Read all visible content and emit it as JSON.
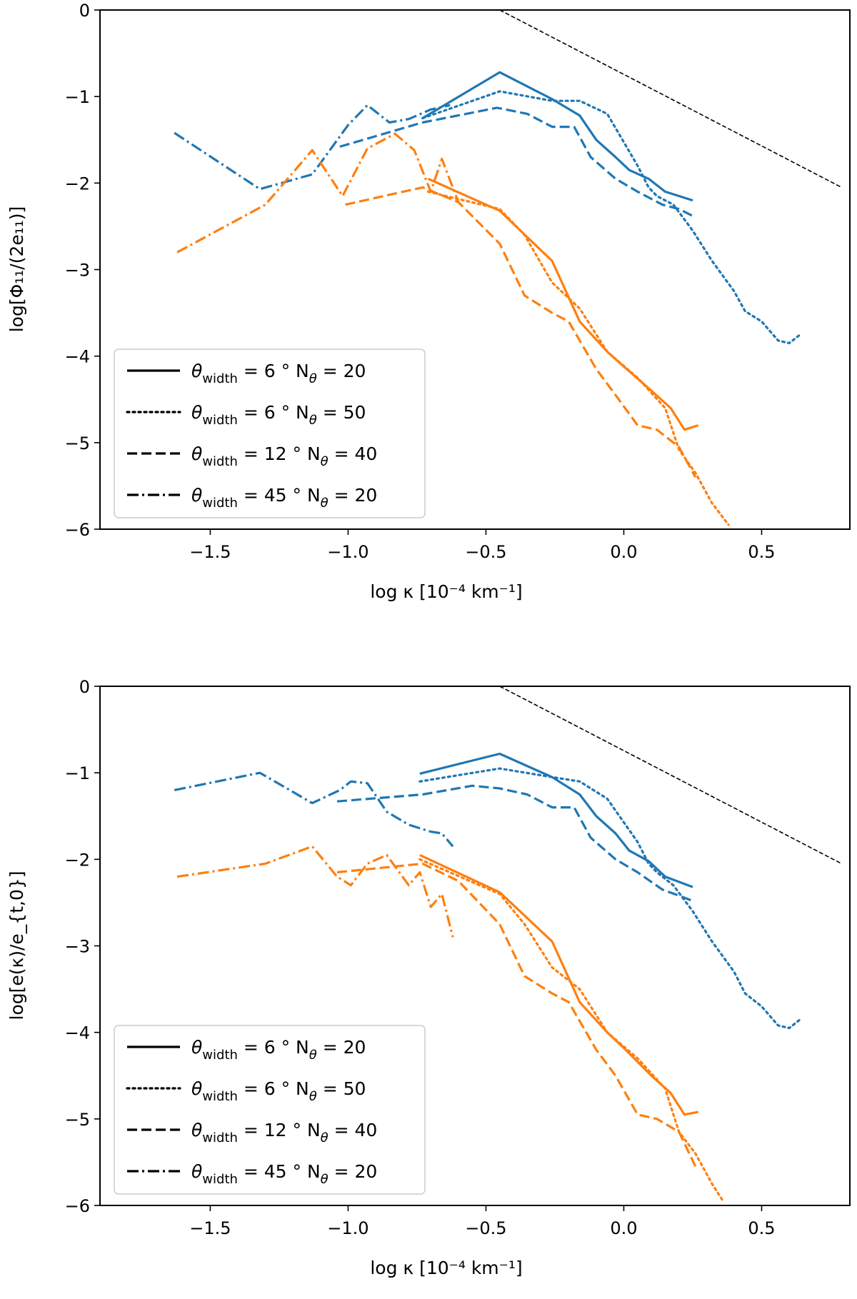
{
  "colors": {
    "blue": "#1f77b4",
    "orange": "#ff7f0e",
    "reference": "#000000"
  },
  "chart_data": [
    {
      "type": "line",
      "xlabel": "log κ [10⁻⁴ km⁻¹]",
      "ylabel": "log[Φ₁₁/(2e₁₁)]",
      "xlim": [
        -1.9,
        0.82
      ],
      "ylim": [
        -6,
        0
      ],
      "x_ticks": [
        "−1.5",
        "−1.0",
        "−0.5",
        "0.0",
        "0.5"
      ],
      "y_ticks": [
        "0",
        "−1",
        "−2",
        "−3",
        "−4",
        "−5",
        "−6"
      ],
      "legend_position": "lower-left",
      "legend": [
        {
          "style": "solid",
          "label_prefix": "θ",
          "label_sub": "width",
          "label_rest": " = 6 ° N",
          "label_sub2": "θ",
          "label_end": " = 20"
        },
        {
          "style": "dotted",
          "label_prefix": "θ",
          "label_sub": "width",
          "label_rest": " = 6 ° N",
          "label_sub2": "θ",
          "label_end": " = 50"
        },
        {
          "style": "dashed",
          "label_prefix": "θ",
          "label_sub": "width",
          "label_rest": " = 12 ° N",
          "label_sub2": "θ",
          "label_end": " = 40"
        },
        {
          "style": "dashdot",
          "label_prefix": "θ",
          "label_sub": "width",
          "label_rest": " = 45 ° N",
          "label_sub2": "θ",
          "label_end": " = 20"
        }
      ],
      "reference_line": {
        "x": [
          -0.45,
          0.79
        ],
        "y": [
          0.0,
          -2.05
        ]
      },
      "series": [
        {
          "color": "blue",
          "style": "solid",
          "x": [
            -0.73,
            -0.45,
            -0.26,
            -0.16,
            -0.1,
            -0.03,
            0.02,
            0.09,
            0.15,
            0.25
          ],
          "y": [
            -1.25,
            -0.72,
            -1.03,
            -1.22,
            -1.5,
            -1.7,
            -1.85,
            -1.95,
            -2.1,
            -2.2
          ]
        },
        {
          "color": "blue",
          "style": "dotted",
          "x": [
            -0.73,
            -0.45,
            -0.26,
            -0.16,
            -0.06,
            0.05,
            0.09,
            0.12,
            0.18,
            0.25,
            0.32,
            0.4,
            0.44,
            0.5,
            0.56,
            0.6,
            0.64
          ],
          "y": [
            -1.25,
            -0.94,
            -1.05,
            -1.05,
            -1.2,
            -1.8,
            -2.05,
            -2.15,
            -2.25,
            -2.55,
            -2.9,
            -3.25,
            -3.48,
            -3.6,
            -3.82,
            -3.85,
            -3.75
          ]
        },
        {
          "color": "blue",
          "style": "dashed",
          "x": [
            -1.03,
            -0.73,
            -0.46,
            -0.35,
            -0.26,
            -0.18,
            -0.12,
            -0.03,
            0.05,
            0.14,
            0.2,
            0.25
          ],
          "y": [
            -1.58,
            -1.3,
            -1.13,
            -1.2,
            -1.35,
            -1.35,
            -1.7,
            -1.95,
            -2.1,
            -2.25,
            -2.3,
            -2.38
          ]
        },
        {
          "color": "blue",
          "style": "dashdot",
          "x": [
            -1.63,
            -1.32,
            -1.13,
            -1.0,
            -0.93,
            -0.85,
            -0.78,
            -0.7,
            -0.63
          ],
          "y": [
            -1.42,
            -2.07,
            -1.9,
            -1.33,
            -1.1,
            -1.3,
            -1.26,
            -1.15,
            -1.1
          ]
        },
        {
          "color": "orange",
          "style": "solid",
          "x": [
            -0.71,
            -0.45,
            -0.26,
            -0.16,
            -0.06,
            0.0,
            0.1,
            0.17,
            0.22,
            0.27
          ],
          "y": [
            -1.95,
            -2.32,
            -2.9,
            -3.6,
            -3.95,
            -4.12,
            -4.4,
            -4.6,
            -4.85,
            -4.8
          ]
        },
        {
          "color": "orange",
          "style": "dotted",
          "x": [
            -0.71,
            -0.45,
            -0.36,
            -0.26,
            -0.16,
            -0.06,
            0.05,
            0.15,
            0.2,
            0.26,
            0.32,
            0.38
          ],
          "y": [
            -2.1,
            -2.3,
            -2.6,
            -3.15,
            -3.45,
            -3.95,
            -4.25,
            -4.6,
            -5.08,
            -5.35,
            -5.7,
            -5.95
          ]
        },
        {
          "color": "orange",
          "style": "dashed",
          "x": [
            -1.01,
            -0.73,
            -0.6,
            -0.45,
            -0.36,
            -0.26,
            -0.2,
            -0.1,
            -0.03,
            0.05,
            0.12,
            0.2,
            0.26
          ],
          "y": [
            -2.25,
            -2.05,
            -2.22,
            -2.7,
            -3.3,
            -3.5,
            -3.6,
            -4.15,
            -4.45,
            -4.8,
            -4.85,
            -5.05,
            -5.4
          ]
        },
        {
          "color": "orange",
          "style": "dashdot",
          "x": [
            -1.62,
            -1.3,
            -1.13,
            -1.02,
            -0.93,
            -0.83,
            -0.76,
            -0.7,
            -0.66,
            -0.6
          ],
          "y": [
            -2.8,
            -2.25,
            -1.62,
            -2.15,
            -1.6,
            -1.43,
            -1.62,
            -2.1,
            -1.72,
            -2.22
          ]
        }
      ]
    },
    {
      "type": "line",
      "xlabel": "log κ [10⁻⁴ km⁻¹]",
      "ylabel": "log[e(κ)/e_{t,0}]",
      "xlim": [
        -1.9,
        0.82
      ],
      "ylim": [
        -6,
        0
      ],
      "x_ticks": [
        "−1.5",
        "−1.0",
        "−0.5",
        "0.0",
        "0.5"
      ],
      "y_ticks": [
        "0",
        "−1",
        "−2",
        "−3",
        "−4",
        "−5",
        "−6"
      ],
      "legend_position": "lower-left",
      "legend": [
        {
          "style": "solid",
          "label_prefix": "θ",
          "label_sub": "width",
          "label_rest": " = 6 ° N",
          "label_sub2": "θ",
          "label_end": " = 20"
        },
        {
          "style": "dotted",
          "label_prefix": "θ",
          "label_sub": "width",
          "label_rest": " = 6 ° N",
          "label_sub2": "θ",
          "label_end": " = 50"
        },
        {
          "style": "dashed",
          "label_prefix": "θ",
          "label_sub": "width",
          "label_rest": " = 12 ° N",
          "label_sub2": "θ",
          "label_end": " = 40"
        },
        {
          "style": "dashdot",
          "label_prefix": "θ",
          "label_sub": "width",
          "label_rest": " = 45 ° N",
          "label_sub2": "θ",
          "label_end": " = 20"
        }
      ],
      "reference_line": {
        "x": [
          -0.45,
          0.79
        ],
        "y": [
          0.0,
          -2.05
        ]
      },
      "series": [
        {
          "color": "blue",
          "style": "solid",
          "x": [
            -0.74,
            -0.45,
            -0.26,
            -0.16,
            -0.1,
            -0.03,
            0.02,
            0.09,
            0.15,
            0.25
          ],
          "y": [
            -1.01,
            -0.78,
            -1.05,
            -1.25,
            -1.5,
            -1.7,
            -1.9,
            -2.02,
            -2.2,
            -2.32
          ]
        },
        {
          "color": "blue",
          "style": "dotted",
          "x": [
            -0.74,
            -0.45,
            -0.26,
            -0.16,
            -0.06,
            0.05,
            0.09,
            0.12,
            0.18,
            0.25,
            0.32,
            0.4,
            0.44,
            0.5,
            0.56,
            0.6,
            0.64
          ],
          "y": [
            -1.1,
            -0.95,
            -1.05,
            -1.1,
            -1.3,
            -1.8,
            -2.05,
            -2.15,
            -2.3,
            -2.6,
            -2.95,
            -3.3,
            -3.55,
            -3.7,
            -3.92,
            -3.95,
            -3.85
          ]
        },
        {
          "color": "blue",
          "style": "dashed",
          "x": [
            -1.04,
            -0.73,
            -0.55,
            -0.45,
            -0.35,
            -0.26,
            -0.18,
            -0.12,
            -0.03,
            0.05,
            0.14,
            0.2,
            0.25
          ],
          "y": [
            -1.33,
            -1.25,
            -1.15,
            -1.18,
            -1.25,
            -1.4,
            -1.4,
            -1.75,
            -2.0,
            -2.15,
            -2.35,
            -2.42,
            -2.48
          ]
        },
        {
          "color": "blue",
          "style": "dashdot",
          "x": [
            -1.63,
            -1.32,
            -1.13,
            -1.03,
            -0.99,
            -0.93,
            -0.86,
            -0.78,
            -0.7,
            -0.66,
            -0.62
          ],
          "y": [
            -1.2,
            -1.0,
            -1.35,
            -1.2,
            -1.1,
            -1.12,
            -1.45,
            -1.6,
            -1.68,
            -1.7,
            -1.85
          ]
        },
        {
          "color": "orange",
          "style": "solid",
          "x": [
            -0.74,
            -0.45,
            -0.26,
            -0.16,
            -0.06,
            0.0,
            0.1,
            0.17,
            0.22,
            0.27
          ],
          "y": [
            -1.95,
            -2.38,
            -2.95,
            -3.65,
            -4.0,
            -4.18,
            -4.5,
            -4.7,
            -4.95,
            -4.92
          ]
        },
        {
          "color": "orange",
          "style": "dotted",
          "x": [
            -0.74,
            -0.45,
            -0.36,
            -0.26,
            -0.16,
            -0.06,
            0.05,
            0.15,
            0.2,
            0.26,
            0.32,
            0.36
          ],
          "y": [
            -2.0,
            -2.4,
            -2.75,
            -3.25,
            -3.5,
            -4.0,
            -4.3,
            -4.65,
            -5.15,
            -5.4,
            -5.75,
            -5.95
          ]
        },
        {
          "color": "orange",
          "style": "dashed",
          "x": [
            -1.04,
            -0.73,
            -0.6,
            -0.45,
            -0.36,
            -0.26,
            -0.2,
            -0.1,
            -0.03,
            0.05,
            0.12,
            0.2,
            0.26
          ],
          "y": [
            -2.15,
            -2.05,
            -2.25,
            -2.75,
            -3.35,
            -3.55,
            -3.65,
            -4.2,
            -4.5,
            -4.95,
            -5.0,
            -5.15,
            -5.55
          ]
        },
        {
          "color": "orange",
          "style": "dashdot",
          "x": [
            -1.62,
            -1.3,
            -1.13,
            -1.04,
            -0.99,
            -0.93,
            -0.86,
            -0.78,
            -0.74,
            -0.7,
            -0.66,
            -0.62
          ],
          "y": [
            -2.2,
            -2.05,
            -1.85,
            -2.2,
            -2.3,
            -2.05,
            -1.95,
            -2.3,
            -2.15,
            -2.55,
            -2.4,
            -2.9
          ]
        }
      ]
    }
  ]
}
